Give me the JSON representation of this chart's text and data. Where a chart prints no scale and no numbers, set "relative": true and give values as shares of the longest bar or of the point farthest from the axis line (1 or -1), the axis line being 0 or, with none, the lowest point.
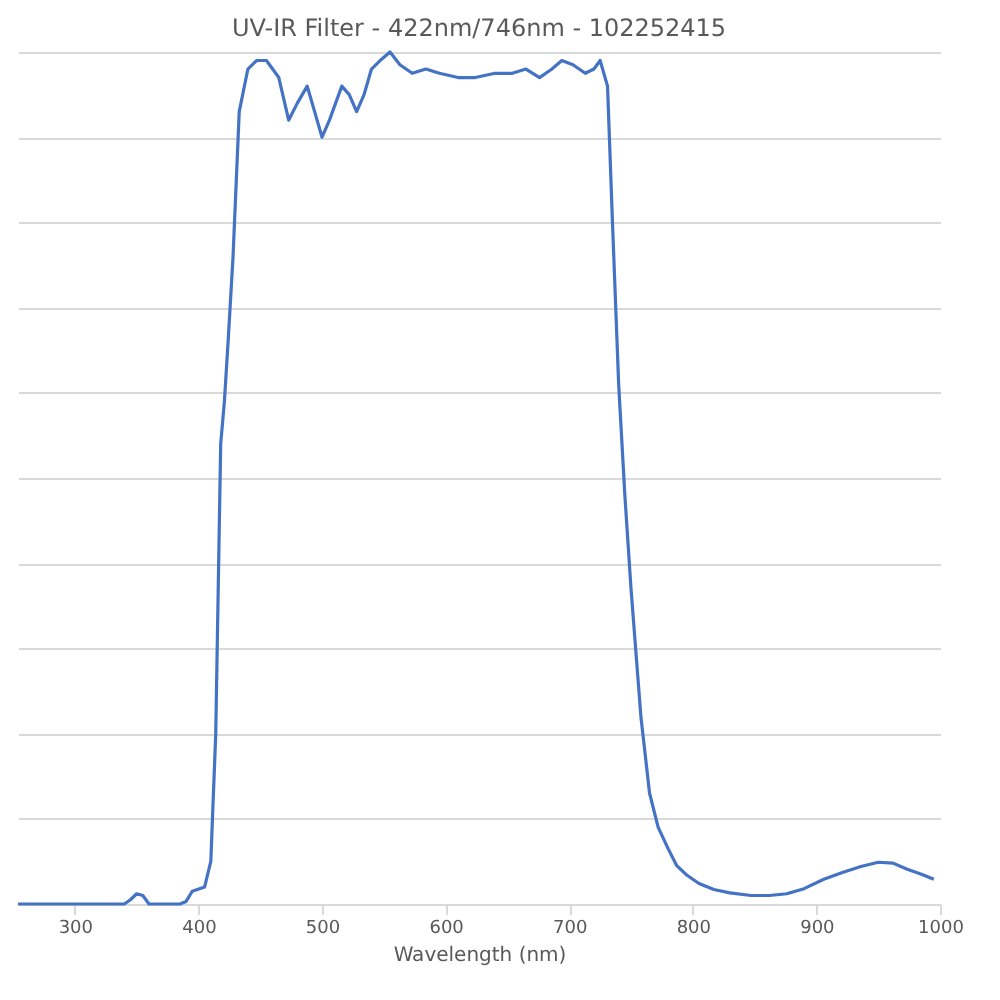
{
  "chart_data": {
    "type": "line",
    "title": "UV-IR Filter - 422nm/746nm -  102252415",
    "xlabel": "Wavelength (nm)",
    "relative": true,
    "xlim": [
      254,
      1000
    ],
    "xticks": [
      300,
      400,
      500,
      600,
      700,
      800,
      900,
      1000
    ],
    "grid": "y",
    "marker": "none",
    "line_style": "solid",
    "series": [
      {
        "color": "#4472c4",
        "x": [
          254,
          300,
          340,
          345,
          350,
          355,
          360,
          385,
          390,
          395,
          405,
          410,
          414,
          418,
          421,
          424,
          428,
          433,
          440,
          447,
          455,
          465,
          473,
          480,
          488,
          494,
          500,
          506,
          516,
          522,
          528,
          534,
          540,
          547,
          555,
          563,
          573,
          584,
          595,
          610,
          624,
          640,
          654,
          665,
          676,
          686,
          694,
          703,
          713,
          720,
          725,
          731,
          735,
          740,
          745,
          750,
          758,
          765,
          772,
          780,
          787,
          795,
          805,
          817,
          830,
          847,
          862,
          876,
          890,
          906,
          921,
          936,
          950,
          962,
          973,
          985,
          995
        ],
        "values": [
          0,
          0,
          0,
          0.005,
          0.012,
          0.01,
          0,
          0,
          0.003,
          0.015,
          0.02,
          0.05,
          0.2,
          0.54,
          0.59,
          0.66,
          0.76,
          0.93,
          0.98,
          0.99,
          0.99,
          0.97,
          0.92,
          0.94,
          0.96,
          0.93,
          0.9,
          0.92,
          0.96,
          0.95,
          0.93,
          0.95,
          0.98,
          0.99,
          1.0,
          0.985,
          0.975,
          0.98,
          0.975,
          0.97,
          0.97,
          0.975,
          0.975,
          0.98,
          0.97,
          0.98,
          0.99,
          0.985,
          0.975,
          0.98,
          0.99,
          0.96,
          0.8,
          0.61,
          0.48,
          0.37,
          0.22,
          0.13,
          0.09,
          0.065,
          0.045,
          0.034,
          0.024,
          0.017,
          0.013,
          0.01,
          0.01,
          0.012,
          0.018,
          0.029,
          0.037,
          0.044,
          0.049,
          0.048,
          0.041,
          0.035,
          0.029
        ]
      }
    ]
  }
}
